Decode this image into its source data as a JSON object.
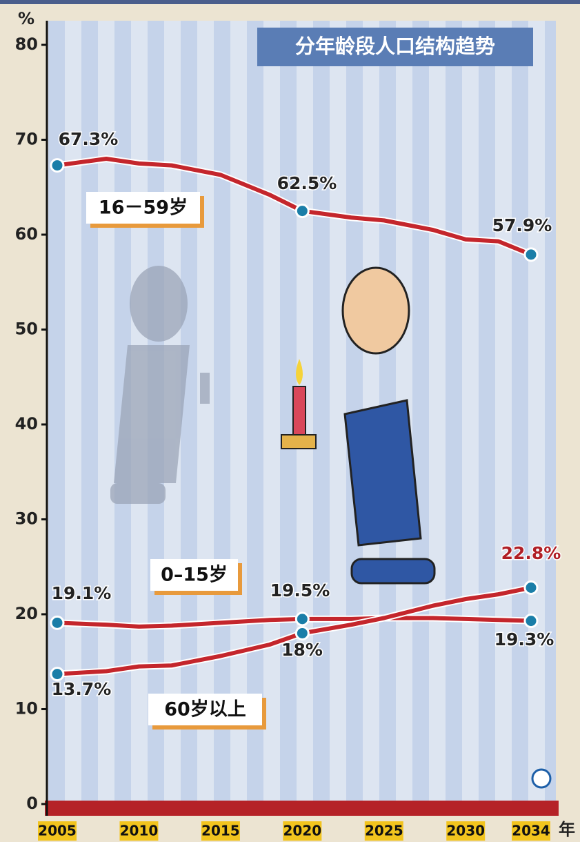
{
  "chart_data": {
    "type": "line",
    "title": "分年龄段人口结构趋势",
    "y_unit": "%",
    "x_unit": "年",
    "x": [
      2005,
      2008,
      2010,
      2012,
      2015,
      2018,
      2020,
      2023,
      2025,
      2028,
      2030,
      2032,
      2034
    ],
    "xlim": [
      2005,
      2034
    ],
    "xticks": [
      2005,
      2010,
      2015,
      2020,
      2025,
      2030,
      2034
    ],
    "ylim": [
      0,
      80
    ],
    "yticks": [
      0,
      10,
      20,
      30,
      40,
      50,
      60,
      70,
      80
    ],
    "series": [
      {
        "name": "16－59岁",
        "color": "#c4262c",
        "values": [
          67.3,
          68.0,
          67.5,
          67.3,
          66.3,
          64.2,
          62.5,
          61.8,
          61.5,
          60.5,
          59.5,
          59.3,
          57.9
        ],
        "value_labels": [
          "67.3%",
          null,
          null,
          null,
          null,
          null,
          "62.5%",
          null,
          null,
          null,
          null,
          null,
          "57.9%"
        ]
      },
      {
        "name": "0–15岁",
        "color": "#c4262c",
        "values": [
          19.1,
          18.9,
          18.7,
          18.8,
          19.1,
          19.4,
          19.5,
          19.5,
          19.6,
          19.6,
          19.5,
          19.4,
          19.3
        ],
        "value_labels": [
          "19.1%",
          null,
          null,
          null,
          null,
          null,
          "19.5%",
          null,
          null,
          null,
          null,
          null,
          "19.3%"
        ]
      },
      {
        "name": "60岁以上",
        "color": "#c4262c",
        "values": [
          13.7,
          14.0,
          14.5,
          14.6,
          15.6,
          16.8,
          18,
          18.9,
          19.6,
          20.9,
          21.6,
          22.1,
          22.8
        ],
        "value_labels": [
          "13.7%",
          null,
          null,
          null,
          null,
          null,
          "18%",
          null,
          null,
          null,
          null,
          null,
          "22.8%"
        ]
      }
    ]
  }
}
